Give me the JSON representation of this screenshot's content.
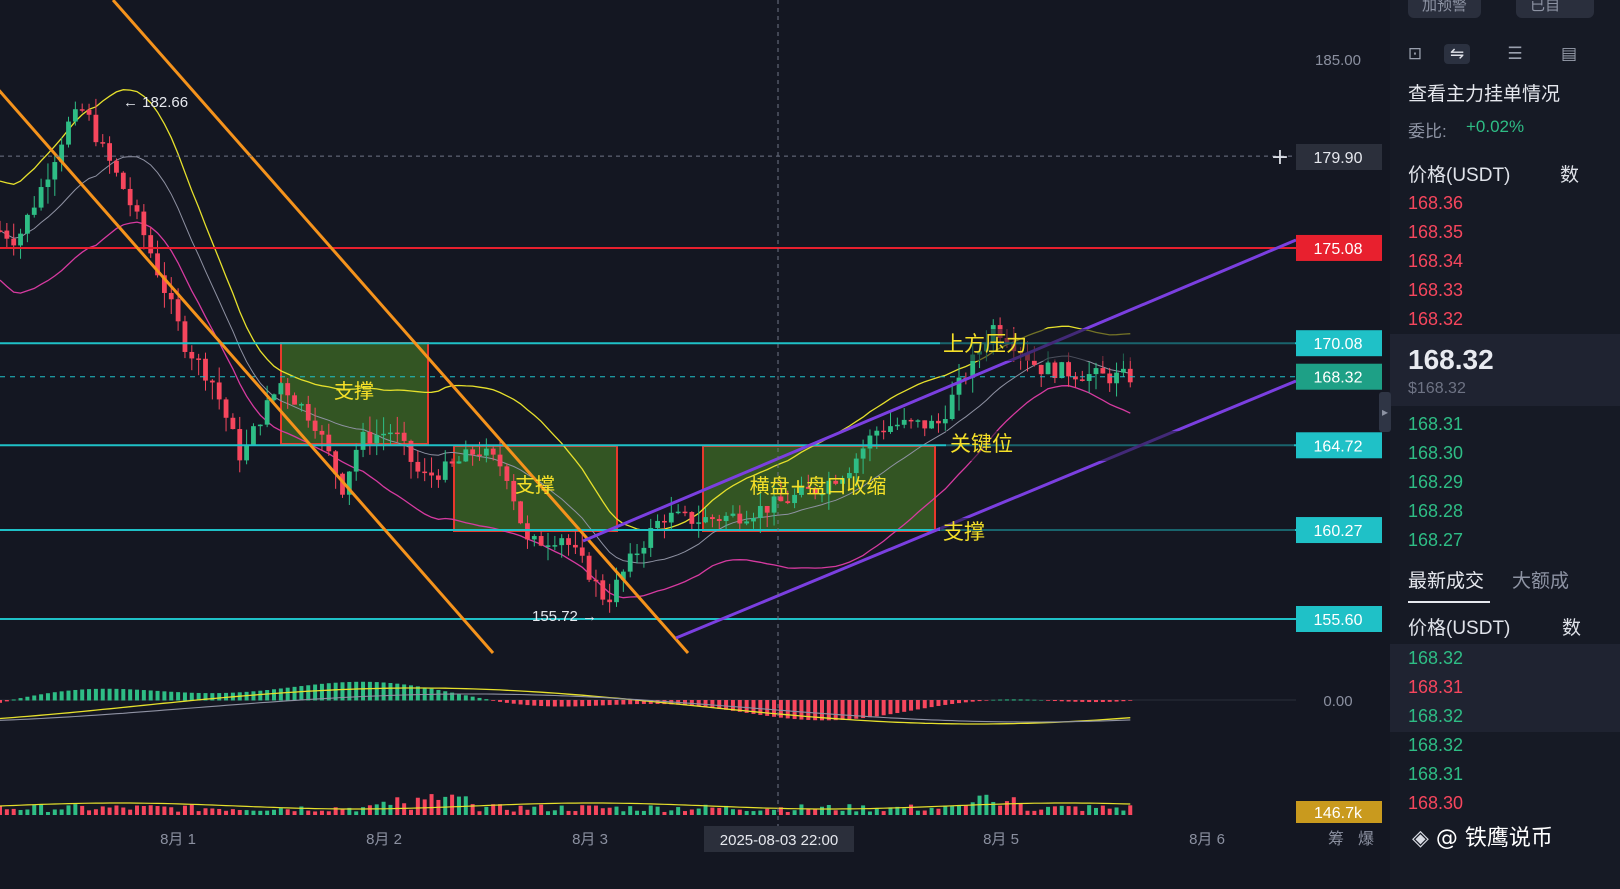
{
  "chart_data": {
    "type": "candlestick",
    "x_ticks": [
      "8月 1",
      "8月 2",
      "8月 3",
      "8月 5",
      "8月 6"
    ],
    "y_ticks": [
      "185.00",
      "0.00"
    ],
    "price_range": [
      152.0,
      190.5
    ],
    "crosshair": {
      "date_label": "2025-08-03 22:00",
      "price_label": "179.90",
      "price": 179.9
    },
    "price_labels": [
      {
        "value": 175.08,
        "text": "175.08",
        "color": "#e8202e"
      },
      {
        "value": 170.08,
        "text": "170.08",
        "color": "#1fc1c7"
      },
      {
        "value": 168.32,
        "text": "168.32",
        "color": "#1ea086"
      },
      {
        "value": 164.72,
        "text": "164.72",
        "color": "#1fc1c7"
      },
      {
        "value": 160.27,
        "text": "160.27",
        "color": "#1fc1c7"
      },
      {
        "value": 155.6,
        "text": "155.60",
        "color": "#1fc1c7"
      }
    ],
    "volume_label": "146.7k",
    "extremes": {
      "high": "182.66",
      "low": "155.72"
    },
    "annotations": [
      {
        "id": "zone1",
        "text": "支撑"
      },
      {
        "id": "zone2",
        "text": "支撑"
      },
      {
        "id": "zone3",
        "text": "横盘+盘口收缩"
      },
      {
        "id": "a1",
        "text": "上方压力"
      },
      {
        "id": "a2",
        "text": "关键位"
      },
      {
        "id": "a3",
        "text": "支撑"
      }
    ],
    "bottom_labels": [
      "筹",
      "爆"
    ],
    "colors": {
      "up": "#2ebd85",
      "down": "#f6465d",
      "resistance": "#e8202e",
      "level": "#1fc1c7",
      "channel_down": "#f5931c",
      "channel_up": "#7b3fe0",
      "zone_fill": "#3d6b24",
      "zone_border": "#e8392b",
      "annotation_text": "#f5e028"
    }
  },
  "side": {
    "top_buttons": [
      "加预警",
      "已自"
    ],
    "title": "查看主力挂单情况",
    "ratio_label": "委比:",
    "ratio_value": "+0.02%",
    "price_header": "价格(USDT)",
    "qty_header_cut": "数",
    "asks": [
      "168.36",
      "168.35",
      "168.34",
      "168.33",
      "168.32"
    ],
    "last_price": "168.32",
    "last_price_usd": "$168.32",
    "bids": [
      "168.31",
      "168.30",
      "168.29",
      "168.28",
      "168.27"
    ],
    "tabs": [
      "最新成交",
      "大额成"
    ],
    "trades_header": "价格(USDT)",
    "trades_qty_cut": "数",
    "trades": [
      {
        "price": "168.32",
        "side": "up"
      },
      {
        "price": "168.31",
        "side": "down"
      },
      {
        "price": "168.32",
        "side": "up"
      },
      {
        "price": "168.32",
        "side": "up"
      },
      {
        "price": "168.31",
        "side": "up"
      },
      {
        "price": "168.30",
        "side": "down"
      }
    ],
    "watermark": "@ 铁鹰说币"
  }
}
